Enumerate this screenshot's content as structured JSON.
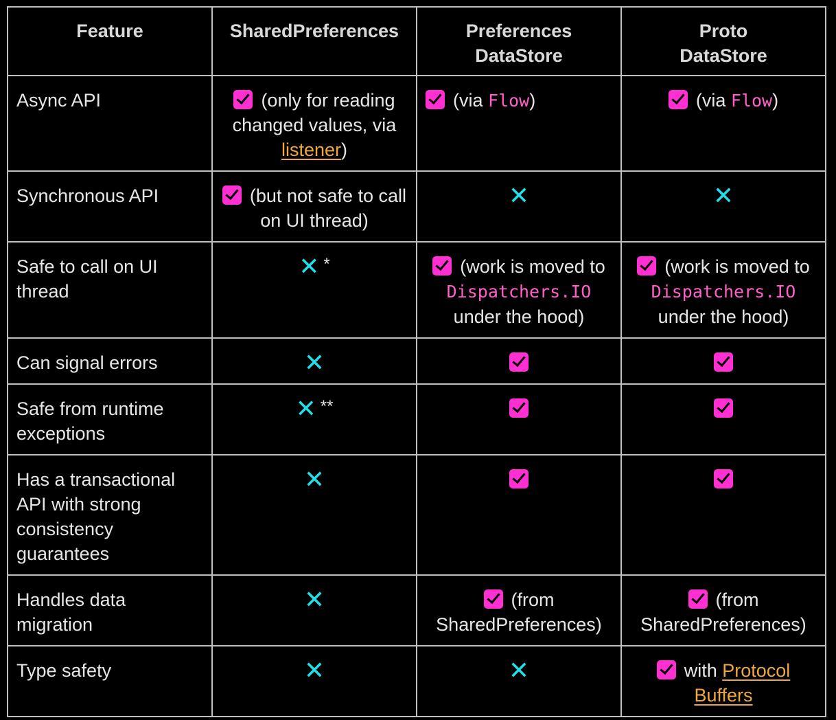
{
  "header": {
    "feature": "Feature",
    "shared_preferences": "SharedPreferences",
    "preferences_datastore_line1": "Preferences",
    "preferences_datastore_line2": "DataStore",
    "proto_datastore_line1": "Proto",
    "proto_datastore_line2": "DataStore"
  },
  "colors": {
    "check": "#ff2fd1",
    "cross": "#1fe0ea",
    "code": "#ff5fc8",
    "link": "#f0a838"
  },
  "rows": [
    {
      "feature": "Async API",
      "sp_text_a": "(only for reading changed values, via ",
      "sp_link": "listener",
      "sp_text_b": ")",
      "pds_text_a": "(via ",
      "pds_code": "Flow",
      "pds_text_b": ")",
      "proto_text_a": "(via ",
      "proto_code": "Flow",
      "proto_text_b": ")"
    },
    {
      "feature": "Synchronous API",
      "sp_text": "(but not safe to call on UI thread)"
    },
    {
      "feature": "Safe to call on UI thread",
      "sp_mark": "*",
      "pds_text_a": "(work is moved to ",
      "pds_code": "Dispatchers.IO",
      "pds_text_b": " under the hood)",
      "proto_text_a": "(work is moved to ",
      "proto_code": "Dispatchers.IO",
      "proto_text_b": " under the hood)"
    },
    {
      "feature": "Can signal errors"
    },
    {
      "feature": "Safe from runtime exceptions",
      "sp_mark": "**"
    },
    {
      "feature": "Has a transactional API with strong consistency guarantees"
    },
    {
      "feature": "Handles data migration",
      "pds_text": "(from SharedPreferences)",
      "proto_text": "(from SharedPreferences)"
    },
    {
      "feature": "Type safety",
      "proto_text": "with ",
      "proto_link": "Protocol Buffers"
    }
  ],
  "icons": {
    "check": "check-box-icon",
    "cross": "cross-mark-icon"
  },
  "cross_glyph": "✕"
}
